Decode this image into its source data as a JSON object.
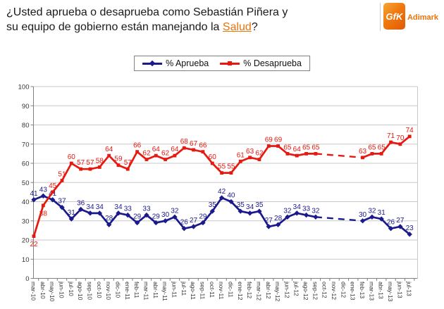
{
  "title": {
    "line1": "¿Usted aprueba o desaprueba como Sebastián Piñera y",
    "line2_prefix": "su equipo de gobierno están manejando la ",
    "line2_highlight": "Salud",
    "line2_suffix": "?"
  },
  "logo": {
    "box_text": "GfK",
    "brand": "Adimark",
    "accent_orange": "#e8740c"
  },
  "legend": [
    {
      "label": "% Aprueba",
      "color": "#1a1a8c",
      "marker": "diamond"
    },
    {
      "label": "% Desaprueba",
      "color": "#e61910",
      "marker": "square"
    }
  ],
  "chart_data": {
    "type": "line",
    "title": "",
    "xlabel": "",
    "ylabel": "",
    "ylim": [
      0,
      100
    ],
    "ytick": 10,
    "grid": true,
    "legend_position": "top",
    "gap_style": "dashed-interpolation",
    "categories": [
      "mar-10",
      "abr-10",
      "may-10",
      "jun-10",
      "jul-10",
      "ago-10",
      "sep-10",
      "oct-10",
      "nov-10",
      "dic-10",
      "ene-11",
      "feb-11",
      "mar-11",
      "abr-11",
      "may-11",
      "jun-11",
      "jul-11",
      "ago-11",
      "sep-11",
      "oct-11",
      "nov-11",
      "dic-11",
      "ene-12",
      "feb-12",
      "mar-12",
      "abr-12",
      "may-12",
      "jun-12",
      "jul-12",
      "ago-12",
      "sep-12",
      "oct-12",
      "nov-12",
      "dic-12",
      "ene-13",
      "feb-13",
      "mar-13",
      "abr-13",
      "may-13",
      "jun-13",
      "jul-13"
    ],
    "series": [
      {
        "name": "% Aprueba",
        "color": "#1a1a8c",
        "marker": "diamond",
        "label_below": [],
        "values": [
          41,
          43,
          41,
          37,
          31,
          36,
          34,
          34,
          28,
          34,
          33,
          29,
          33,
          29,
          30,
          32,
          26,
          27,
          29,
          35,
          42,
          40,
          35,
          34,
          35,
          27,
          28,
          32,
          34,
          33,
          32,
          null,
          null,
          null,
          null,
          30,
          32,
          31,
          26,
          27,
          23
        ]
      },
      {
        "name": "% Desaprueba",
        "color": "#e61910",
        "marker": "square",
        "label_below": [
          0,
          1
        ],
        "values": [
          22,
          38,
          45,
          51,
          60,
          57,
          57,
          58,
          64,
          59,
          57,
          66,
          62,
          64,
          62,
          64,
          68,
          67,
          66,
          60,
          55,
          55,
          61,
          63,
          62,
          69,
          69,
          65,
          64,
          65,
          65,
          null,
          null,
          null,
          null,
          63,
          65,
          65,
          71,
          70,
          74
        ]
      }
    ]
  }
}
